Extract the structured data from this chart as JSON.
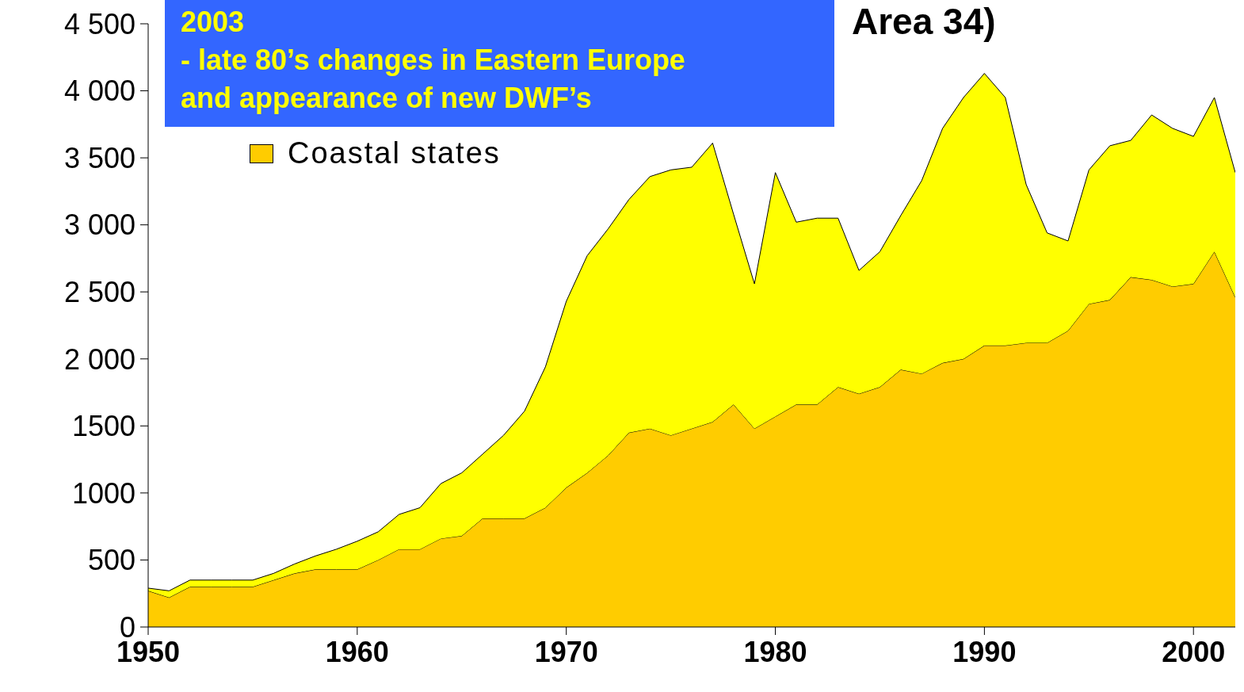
{
  "chart_data": {
    "type": "area",
    "title": "Area 34)",
    "annotations": [
      "2003\n- late 80’s changes in Eastern Europe\nand appearance of new DWF’s"
    ],
    "x": [
      1950,
      1951,
      1952,
      1953,
      1954,
      1955,
      1956,
      1957,
      1958,
      1959,
      1960,
      1961,
      1962,
      1963,
      1964,
      1965,
      1966,
      1967,
      1968,
      1969,
      1970,
      1971,
      1972,
      1973,
      1974,
      1975,
      1976,
      1977,
      1978,
      1979,
      1980,
      1981,
      1982,
      1983,
      1984,
      1985,
      1986,
      1987,
      1988,
      1989,
      1990,
      1991,
      1992,
      1993,
      1994,
      1995,
      1996,
      1997,
      1998,
      1999,
      2000,
      2001,
      2002
    ],
    "stacked": true,
    "series": [
      {
        "name": "Coastal states",
        "color": "#ffcc00",
        "values": [
          270,
          220,
          300,
          300,
          300,
          300,
          350,
          400,
          430,
          430,
          430,
          500,
          580,
          580,
          660,
          680,
          810,
          810,
          810,
          890,
          1040,
          1150,
          1280,
          1450,
          1480,
          1430,
          1480,
          1530,
          1660,
          1480,
          1570,
          1660,
          1660,
          1790,
          1740,
          1790,
          1920,
          1890,
          1970,
          2000,
          2100,
          2100,
          2120,
          2120,
          2210,
          2410,
          2440,
          2610,
          2590,
          2540,
          2560,
          2800,
          2460
        ]
      },
      {
        "color": "#ffff00",
        "values": [
          20,
          50,
          50,
          50,
          50,
          50,
          50,
          70,
          100,
          150,
          210,
          210,
          260,
          310,
          410,
          470,
          480,
          620,
          800,
          1050,
          1390,
          1620,
          1690,
          1740,
          1880,
          1980,
          1950,
          2080,
          1420,
          1080,
          1820,
          1360,
          1390,
          1260,
          920,
          1010,
          1150,
          1440,
          1750,
          1950,
          2030,
          1850,
          1180,
          820,
          670,
          1000,
          1150,
          1020,
          1230,
          1180,
          1100,
          1150,
          930
        ]
      }
    ],
    "xlim": [
      1950,
      2002
    ],
    "xticks": [
      1950,
      1960,
      1970,
      1980,
      1990,
      2000
    ],
    "ylim": [
      0,
      4500
    ],
    "yticks": [
      0,
      500,
      {
        "value": 1000,
        "label": "1000"
      },
      {
        "value": 1500,
        "label": "1500"
      },
      {
        "value": 2000,
        "label": "2 000"
      },
      {
        "value": 2500,
        "label": "2 500"
      },
      {
        "value": 3000,
        "label": "3 000"
      },
      {
        "value": 3500,
        "label": "3 500"
      },
      {
        "value": 4000,
        "label": "4 000"
      },
      {
        "value": 4500,
        "label": "4 500"
      }
    ],
    "grid": false,
    "legend": "top left"
  }
}
